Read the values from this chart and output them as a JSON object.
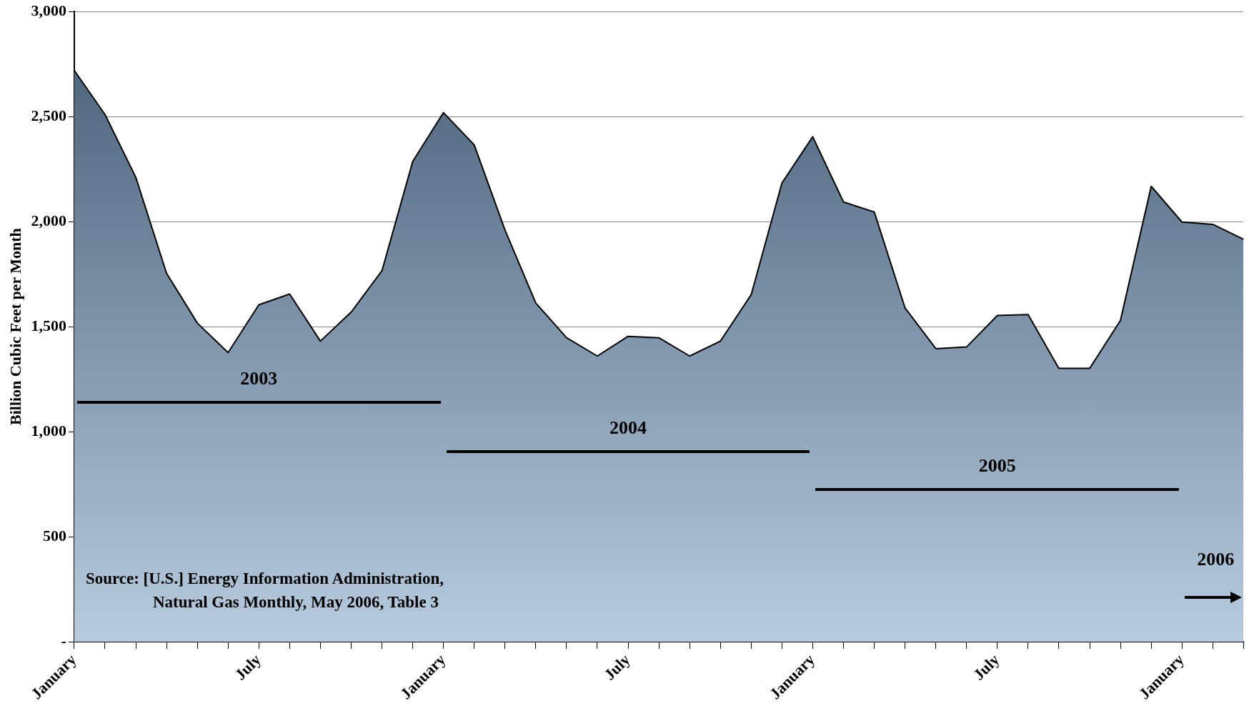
{
  "chart_data": {
    "type": "area",
    "ylabel": "Billion Cubic Feet per Month",
    "categories": [
      "January",
      null,
      null,
      null,
      null,
      null,
      "July",
      null,
      null,
      null,
      null,
      null,
      "January",
      null,
      null,
      null,
      null,
      null,
      "July",
      null,
      null,
      null,
      null,
      null,
      "January",
      null,
      null,
      null,
      null,
      null,
      "July",
      null,
      null,
      null,
      null,
      null,
      "January",
      null,
      null
    ],
    "series": [
      {
        "color": "#7096bf",
        "values": [
          2720,
          2510,
          2211,
          1754,
          1517,
          1376,
          1604,
          1655,
          1431,
          1569,
          1766,
          2286,
          2519,
          2365,
          1959,
          1612,
          1447,
          1360,
          1454,
          1447,
          1360,
          1431,
          1652,
          2184,
          2404,
          2093,
          2046,
          1589,
          1395,
          1403,
          1553,
          1557,
          1301,
          1301,
          1529,
          2168,
          1998,
          1987,
          1916
        ]
      }
    ],
    "ylim": [
      0,
      3000
    ],
    "yticks": [
      {
        "value": 0,
        "label": "-"
      },
      500,
      {
        "value": 1000,
        "label": "1,000"
      },
      {
        "value": 1500,
        "label": "1,500"
      },
      {
        "value": 2000,
        "label": "2,000"
      },
      {
        "value": 2500,
        "label": "2,500"
      },
      {
        "value": 3000,
        "label": "3,000"
      }
    ],
    "grid": "y",
    "legend": false,
    "annotations": [
      "2003",
      "2004",
      "2005",
      "2006",
      "Source:  [U.S.] Energy Information Administration,",
      "Natural Gas Monthly, May 2006, Table 3"
    ]
  }
}
